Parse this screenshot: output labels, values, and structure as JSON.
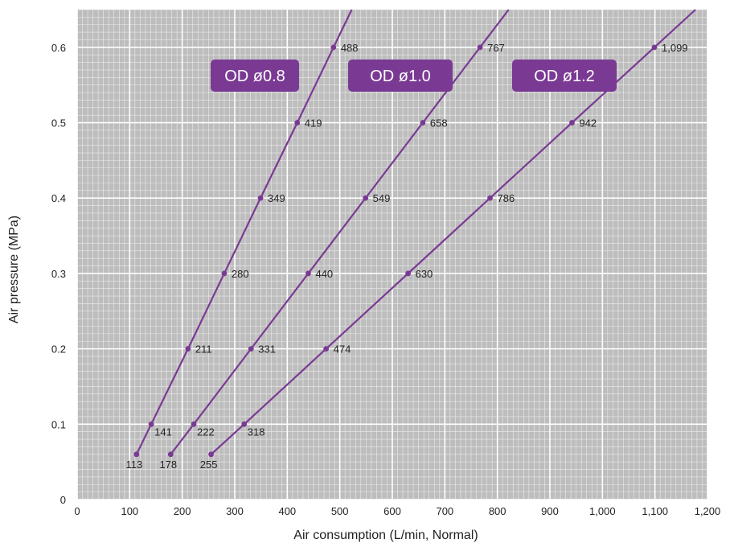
{
  "chart_data": {
    "type": "line",
    "xlabel": "Air consumption (L/min, Normal)",
    "ylabel": "Air pressure (MPa)",
    "xlim": [
      0,
      1200
    ],
    "ylim": [
      0,
      0.65
    ],
    "x_ticks": [
      0,
      100,
      200,
      300,
      400,
      500,
      600,
      700,
      800,
      900,
      1000,
      1100,
      1200
    ],
    "x_tick_labels": [
      "0",
      "100",
      "200",
      "300",
      "400",
      "500",
      "600",
      "700",
      "800",
      "900",
      "1,000",
      "1,100",
      "1,200"
    ],
    "y_ticks": [
      0,
      0.1,
      0.2,
      0.3,
      0.4,
      0.5,
      0.6
    ],
    "y_tick_labels": [
      "0",
      "0.1",
      "0.2",
      "0.3",
      "0.4",
      "0.5",
      "0.6"
    ],
    "grid": true,
    "series": [
      {
        "name": "OD ø0.8",
        "color": "#7a3a94",
        "points": [
          {
            "x": 113,
            "y": 0.06,
            "label": "113"
          },
          {
            "x": 141,
            "y": 0.1,
            "label": "141"
          },
          {
            "x": 211,
            "y": 0.2,
            "label": "211"
          },
          {
            "x": 280,
            "y": 0.3,
            "label": "280"
          },
          {
            "x": 349,
            "y": 0.4,
            "label": "349"
          },
          {
            "x": 419,
            "y": 0.5,
            "label": "419"
          },
          {
            "x": 488,
            "y": 0.6,
            "label": "488"
          }
        ]
      },
      {
        "name": "OD ø1.0",
        "color": "#7a3a94",
        "points": [
          {
            "x": 178,
            "y": 0.06,
            "label": "178"
          },
          {
            "x": 222,
            "y": 0.1,
            "label": "222"
          },
          {
            "x": 331,
            "y": 0.2,
            "label": "331"
          },
          {
            "x": 440,
            "y": 0.3,
            "label": "440"
          },
          {
            "x": 549,
            "y": 0.4,
            "label": "549"
          },
          {
            "x": 658,
            "y": 0.5,
            "label": "658"
          },
          {
            "x": 767,
            "y": 0.6,
            "label": "767"
          }
        ]
      },
      {
        "name": "OD ø1.2",
        "color": "#7a3a94",
        "points": [
          {
            "x": 255,
            "y": 0.06,
            "label": "255"
          },
          {
            "x": 318,
            "y": 0.1,
            "label": "318"
          },
          {
            "x": 474,
            "y": 0.2,
            "label": "474"
          },
          {
            "x": 630,
            "y": 0.3,
            "label": "630"
          },
          {
            "x": 786,
            "y": 0.4,
            "label": "786"
          },
          {
            "x": 942,
            "y": 0.5,
            "label": "942"
          },
          {
            "x": 1099,
            "y": 0.6,
            "label": "1,099"
          }
        ]
      }
    ],
    "badge_color": "#7a3a94",
    "grid_background": "#bdbdbd"
  }
}
